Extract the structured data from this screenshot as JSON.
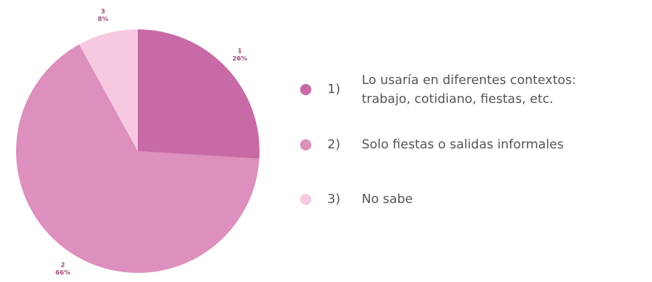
{
  "chart_data": {
    "type": "pie",
    "categories": [
      "1",
      "2",
      "3"
    ],
    "values": [
      26,
      66,
      8
    ],
    "value_labels": [
      "26%",
      "66%",
      "8%"
    ],
    "colors": [
      "#c86aa6",
      "#dd8fbd",
      "#f6c9e0"
    ],
    "legend": [
      {
        "number": "1)",
        "lines": [
          "Lo usaría en diferentes contextos:",
          "trabajo, cotidiano, fiestas, etc."
        ]
      },
      {
        "number": "2)",
        "lines": [
          "Solo fiestas o salidas informales"
        ]
      },
      {
        "number": "3)",
        "lines": [
          "No sabe"
        ]
      }
    ]
  }
}
